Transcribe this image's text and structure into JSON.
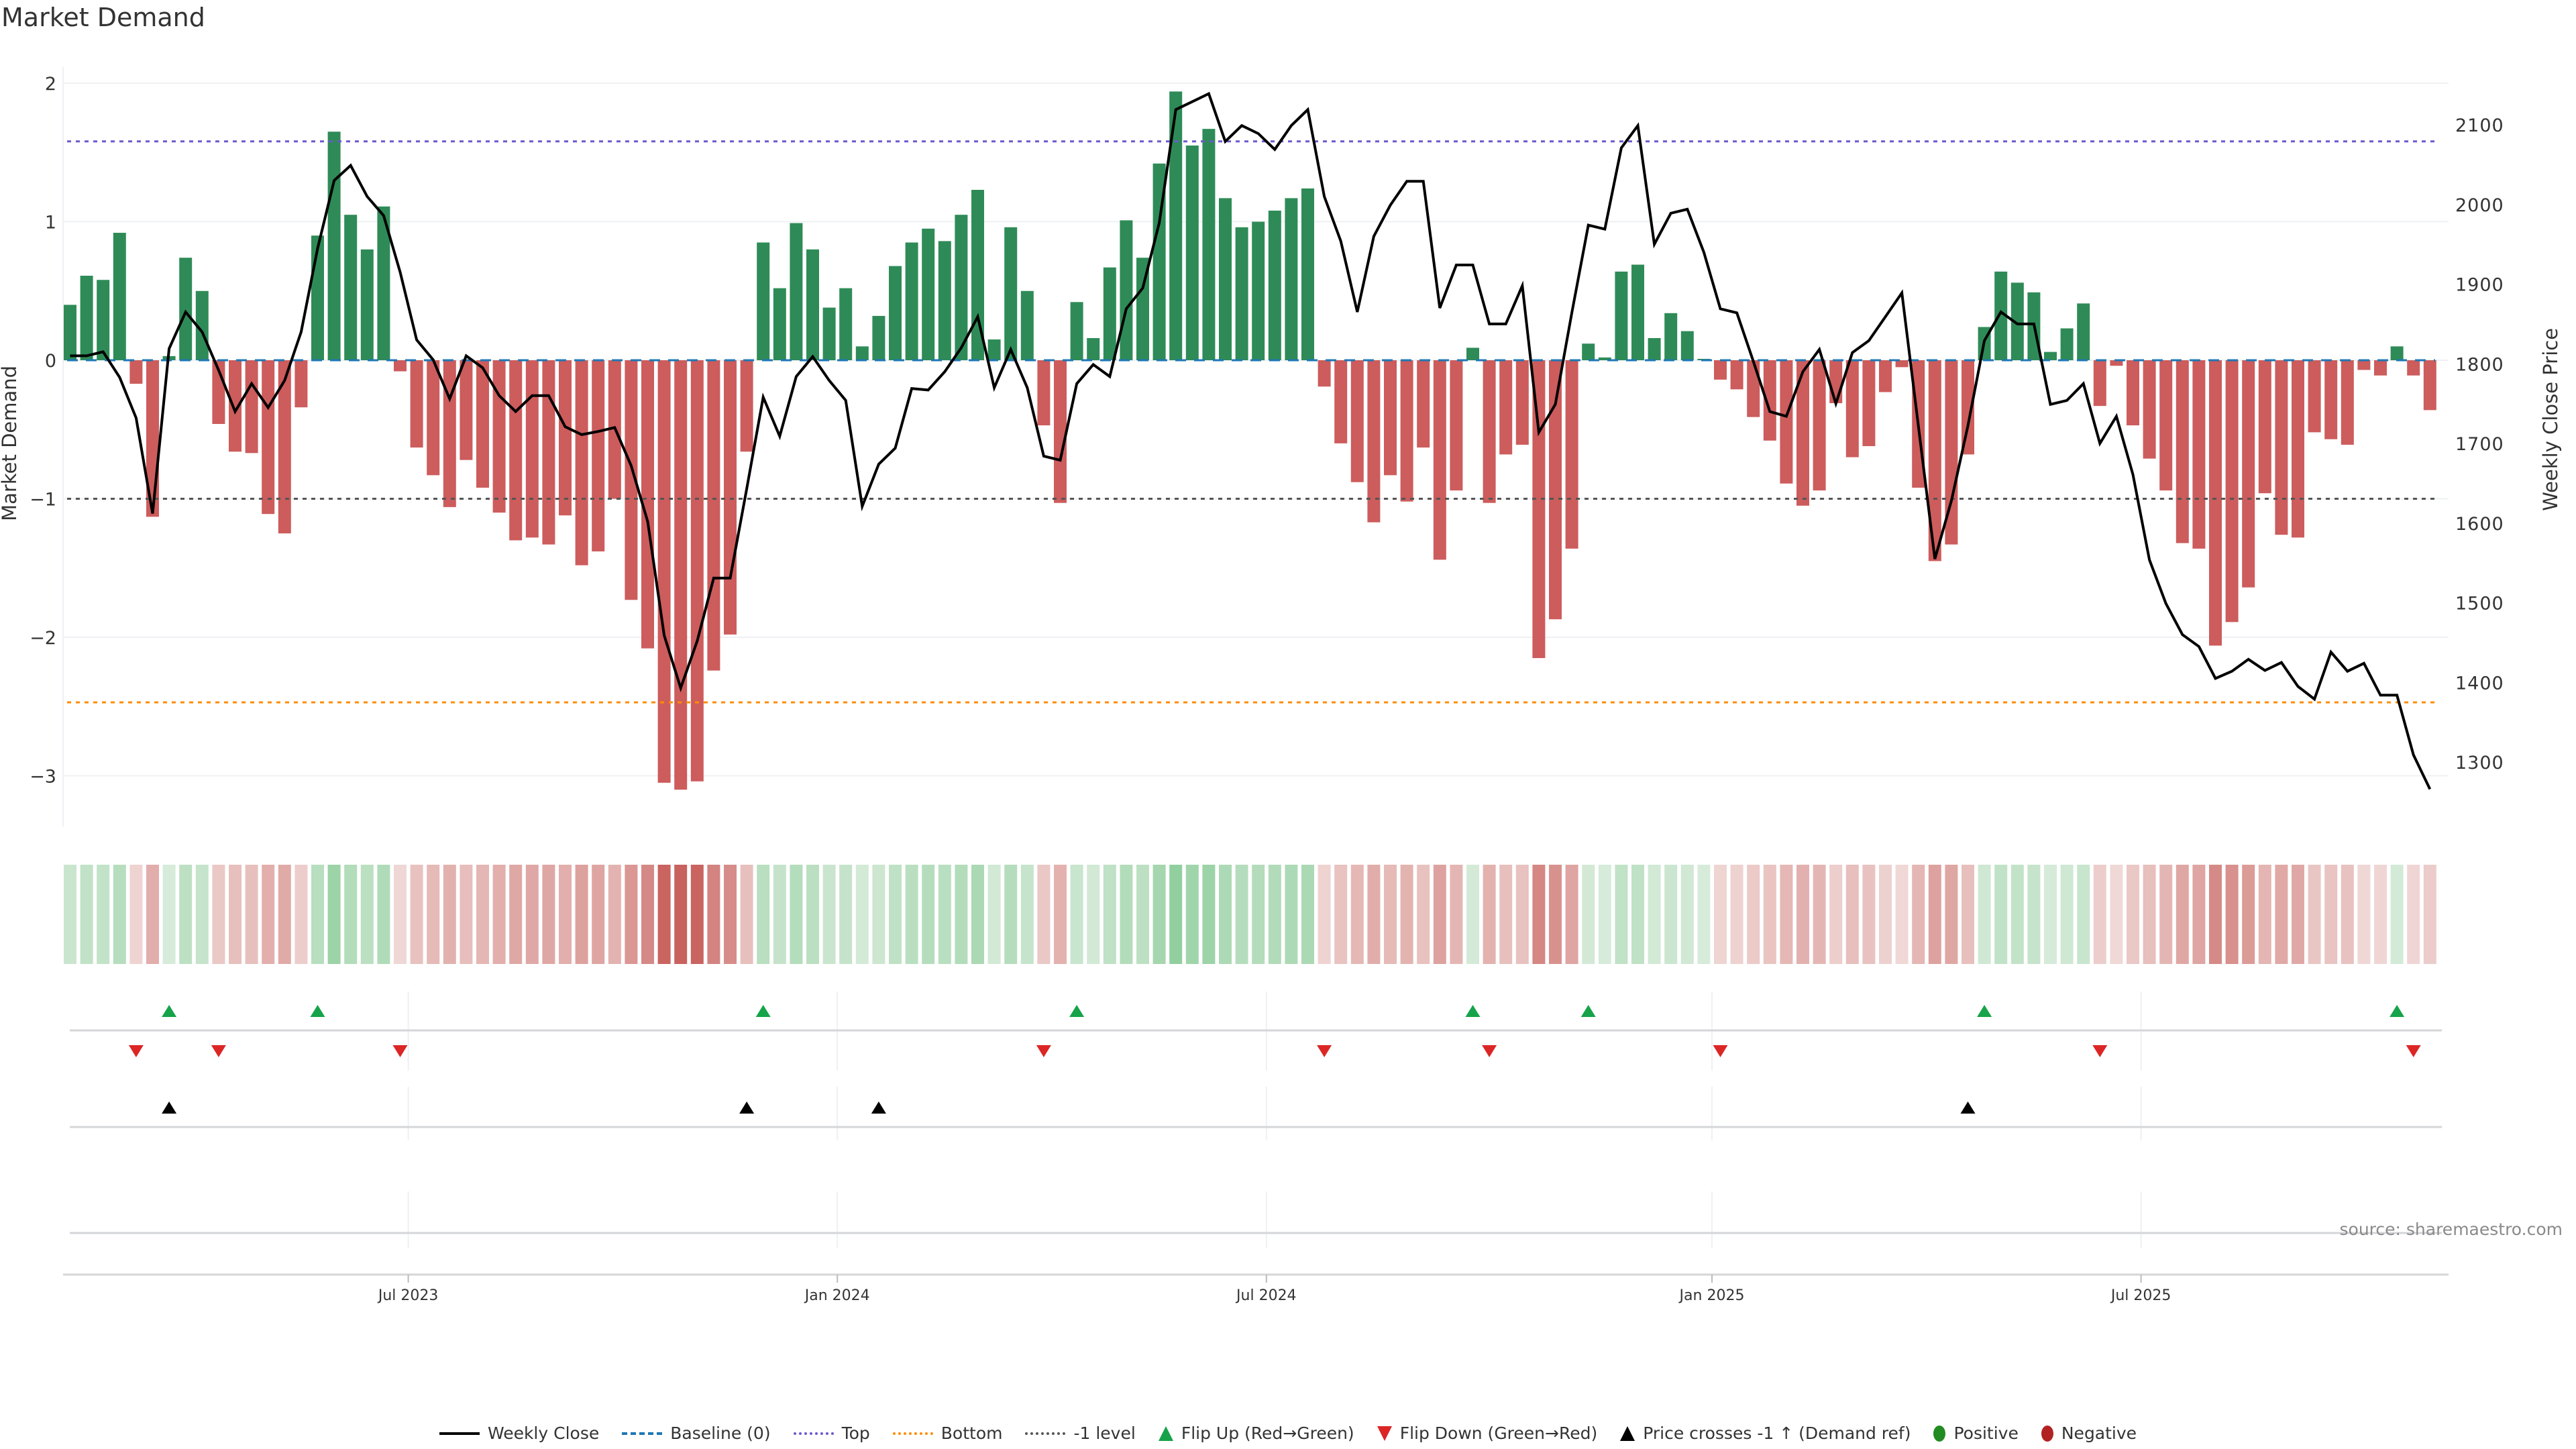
{
  "title": "Market Demand",
  "source": "source: sharemaestro.com",
  "colors": {
    "positive_bar": "#2e8b57",
    "negative_bar": "#cd5c5c",
    "price_line": "#000000",
    "baseline": "#1f77b4",
    "top": "#6a5acd",
    "bottom": "#ff8c00",
    "minus_one": "#555555",
    "flip_up": "#16a34a",
    "flip_down": "#dc2626",
    "cross": "#000000",
    "positive_dot": "#228b22",
    "negative_dot": "#b22222"
  },
  "legend": [
    {
      "label": "Weekly Close",
      "kind": "line-solid",
      "color": "#000000"
    },
    {
      "label": "Baseline (0)",
      "kind": "line-dash",
      "color": "#1f77b4"
    },
    {
      "label": "Top",
      "kind": "line-dot",
      "color": "#6a5acd"
    },
    {
      "label": "Bottom",
      "kind": "line-dot",
      "color": "#ff8c00"
    },
    {
      "label": "-1 level",
      "kind": "line-dot",
      "color": "#555555"
    },
    {
      "label": "Flip Up (Red→Green)",
      "kind": "tri-up",
      "color": "#16a34a"
    },
    {
      "label": "Flip Down (Green→Red)",
      "kind": "tri-down",
      "color": "#dc2626"
    },
    {
      "label": "Price crosses -1 ↑ (Demand ref)",
      "kind": "tri-up",
      "color": "#000000"
    },
    {
      "label": "Positive",
      "kind": "dot",
      "color": "#228b22"
    },
    {
      "label": "Negative",
      "kind": "dot",
      "color": "#b22222"
    }
  ],
  "chart_data": {
    "type": "bar",
    "title": "Market Demand",
    "ylabel": "Market Demand",
    "y2label": "Weekly Close Price",
    "ylim": [
      -3.4,
      2.2
    ],
    "y2lim": [
      1250,
      2170
    ],
    "yticks": [
      "2",
      "1",
      "0",
      "−1",
      "−2",
      "−3"
    ],
    "ytick_values": [
      2,
      1,
      0,
      -1,
      -2,
      -3
    ],
    "y2ticks": [
      "2100",
      "2000",
      "1900",
      "1800",
      "1700",
      "1600",
      "1500",
      "1400",
      "1300"
    ],
    "y2tick_values": [
      2100,
      2000,
      1900,
      1800,
      1700,
      1600,
      1500,
      1400,
      1300
    ],
    "xticks": [
      {
        "label": "Jul 2023",
        "week": 21
      },
      {
        "label": "Jan 2024",
        "week": 47
      },
      {
        "label": "Jul 2024",
        "week": 73
      },
      {
        "label": "Jan 2025",
        "week": 100
      },
      {
        "label": "Jul 2025",
        "week": 126
      }
    ],
    "reference_lines": {
      "baseline": 0,
      "top": 1.58,
      "bottom": -2.47,
      "minus_one": -1
    },
    "series": [
      {
        "name": "Market Demand",
        "values": [
          0.4,
          0.61,
          0.58,
          0.92,
          -0.17,
          -1.13,
          0.03,
          0.74,
          0.5,
          -0.46,
          -0.66,
          -0.67,
          -1.11,
          -1.25,
          -0.34,
          0.9,
          1.65,
          1.05,
          0.8,
          1.11,
          -0.08,
          -0.63,
          -0.83,
          -1.06,
          -0.72,
          -0.92,
          -1.1,
          -1.3,
          -1.28,
          -1.33,
          -1.12,
          -1.48,
          -1.38,
          -1.0,
          -1.73,
          -2.08,
          -3.05,
          -3.1,
          -3.04,
          -2.24,
          -1.98,
          -0.66,
          0.85,
          0.52,
          0.99,
          0.8,
          0.38,
          0.52,
          0.1,
          0.32,
          0.68,
          0.85,
          0.95,
          0.86,
          1.05,
          1.23,
          0.15,
          0.96,
          0.5,
          -0.47,
          -1.03,
          0.42,
          0.16,
          0.67,
          1.01,
          0.74,
          1.42,
          1.94,
          1.55,
          1.67,
          1.17,
          0.96,
          1.0,
          1.08,
          1.17,
          1.24,
          -0.19,
          -0.6,
          -0.88,
          -1.17,
          -0.83,
          -1.02,
          -0.63,
          -1.44,
          -0.94,
          0.09,
          -1.03,
          -0.68,
          -0.61,
          -2.15,
          -1.87,
          -1.36,
          0.12,
          0.02,
          0.64,
          0.69,
          0.16,
          0.34,
          0.21,
          0.01,
          -0.14,
          -0.21,
          -0.41,
          -0.58,
          -0.89,
          -1.05,
          -0.94,
          -0.31,
          -0.7,
          -0.62,
          -0.23,
          -0.05,
          -0.92,
          -1.45,
          -1.33,
          -0.68,
          0.24,
          0.64,
          0.56,
          0.49,
          0.06,
          0.23,
          0.41,
          -0.33,
          -0.04,
          -0.47,
          -0.71,
          -0.94,
          -1.32,
          -1.36,
          -2.06,
          -1.89,
          -1.64,
          -0.96,
          -1.26,
          -1.28,
          -0.52,
          -0.57,
          -0.61,
          -0.07,
          -0.11,
          0.1,
          -0.11,
          -0.36
        ]
      },
      {
        "name": "Weekly Close",
        "values": [
          1810,
          1810,
          1815,
          1783,
          1732,
          1612,
          1819,
          1865,
          1840,
          1792,
          1740,
          1775,
          1745,
          1779,
          1840,
          1945,
          2030,
          2049,
          2010,
          1986,
          1915,
          1830,
          1805,
          1756,
          1810,
          1795,
          1760,
          1740,
          1760,
          1760,
          1721,
          1711,
          1715,
          1720,
          1672,
          1602,
          1459,
          1393,
          1452,
          1531,
          1531,
          1643,
          1758,
          1709,
          1784,
          1809,
          1779,
          1754,
          1621,
          1674,
          1694,
          1769,
          1767,
          1790,
          1820,
          1859,
          1770,
          1818,
          1770,
          1684,
          1679,
          1775,
          1799,
          1784,
          1869,
          1895,
          1977,
          2119,
          2129,
          2139,
          2079,
          2099,
          2089,
          2069,
          2099,
          2119,
          2010,
          1954,
          1865,
          1960,
          1999,
          2029,
          2029,
          1870,
          1924,
          1924,
          1850,
          1850,
          1898,
          1714,
          1749,
          1864,
          1974,
          1969,
          2071,
          2099,
          1950,
          1989,
          1994,
          1940,
          1869,
          1864,
          1803,
          1740,
          1734,
          1790,
          1818,
          1750,
          1814,
          1829,
          1859,
          1889,
          1722,
          1555,
          1628,
          1722,
          1829,
          1865,
          1850,
          1850,
          1749,
          1754,
          1775,
          1700,
          1734,
          1661,
          1554,
          1499,
          1460,
          1445,
          1405,
          1414,
          1429,
          1415,
          1425,
          1395,
          1379,
          1438,
          1414,
          1424,
          1384,
          1384,
          1309,
          1266
        ]
      }
    ],
    "flip_up_weeks": [
      6,
      15,
      42,
      61,
      85,
      92,
      116,
      141
    ],
    "flip_down_weeks": [
      4,
      9,
      20,
      59,
      76,
      86,
      100,
      123,
      142
    ],
    "price_cross_weeks": [
      6,
      41,
      49,
      115
    ],
    "legend_position": "bottom"
  }
}
